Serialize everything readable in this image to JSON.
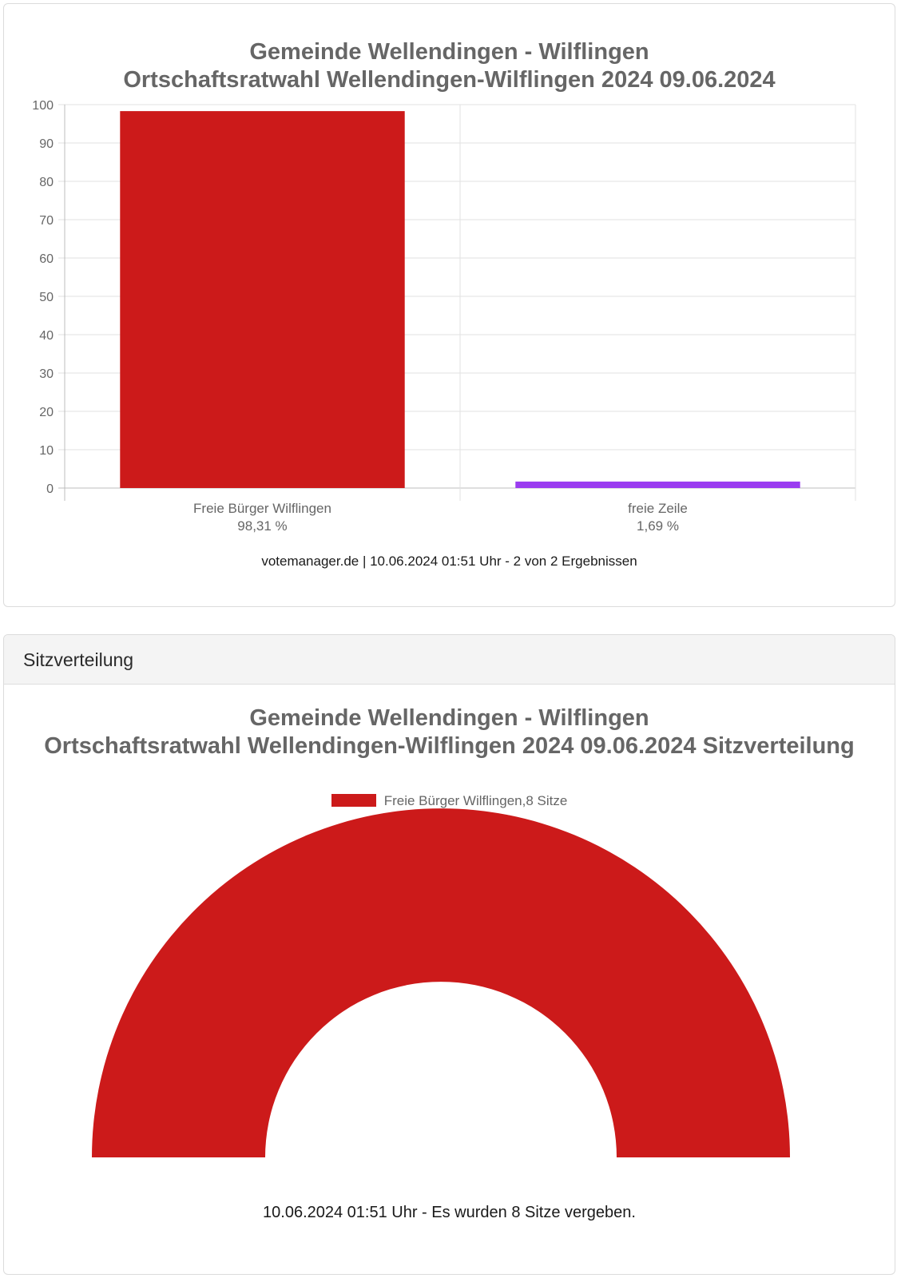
{
  "colors": {
    "party_red": "#cc1a1a",
    "free_line_purple": "#9a3cf0",
    "grid": "#e2e2e2",
    "axis": "#bcbcbc"
  },
  "results_card": {
    "title_line1": "Gemeinde Wellendingen - Wilflingen",
    "title_line2": "Ortschaftsratwahl Wellendingen-Wilflingen 2024 09.06.2024",
    "footer": "votemanager.de | 10.06.2024 01:51 Uhr - 2 von 2 Ergebnissen"
  },
  "seats_card": {
    "header": "Sitzverteilung",
    "title_line1": "Gemeinde Wellendingen - Wilflingen",
    "title_line2": "Ortschaftsratwahl Wellendingen-Wilflingen 2024 09.06.2024 Sitzverteilung",
    "legend_label": "Freie Bürger Wilflingen,8 Sitze",
    "footer": "10.06.2024 01:51 Uhr - Es wurden 8 Sitze vergeben."
  },
  "chart_data": [
    {
      "type": "bar",
      "title": "Gemeinde Wellendingen - Wilflingen / Ortschaftsratwahl Wellendingen-Wilflingen 2024 09.06.2024",
      "categories": [
        "Freie Bürger Wilflingen",
        "freie Zeile"
      ],
      "category_sublabels": [
        "98,31 %",
        "1,69 %"
      ],
      "values": [
        98.31,
        1.69
      ],
      "colors": [
        "#cc1a1a",
        "#9a3cf0"
      ],
      "ylim": [
        0,
        100
      ],
      "yticks": [
        0,
        10,
        20,
        30,
        40,
        50,
        60,
        70,
        80,
        90,
        100
      ],
      "grid": true,
      "xlabel": "",
      "ylabel": ""
    },
    {
      "type": "pie",
      "subtype": "half-doughnut",
      "title": "Gemeinde Wellendingen - Wilflingen / Ortschaftsratwahl Wellendingen-Wilflingen 2024 09.06.2024 Sitzverteilung",
      "categories": [
        "Freie Bürger Wilflingen"
      ],
      "values": [
        8
      ],
      "colors": [
        "#cc1a1a"
      ],
      "legend": [
        "Freie Bürger Wilflingen,8 Sitze"
      ],
      "legend_position": "top"
    }
  ]
}
